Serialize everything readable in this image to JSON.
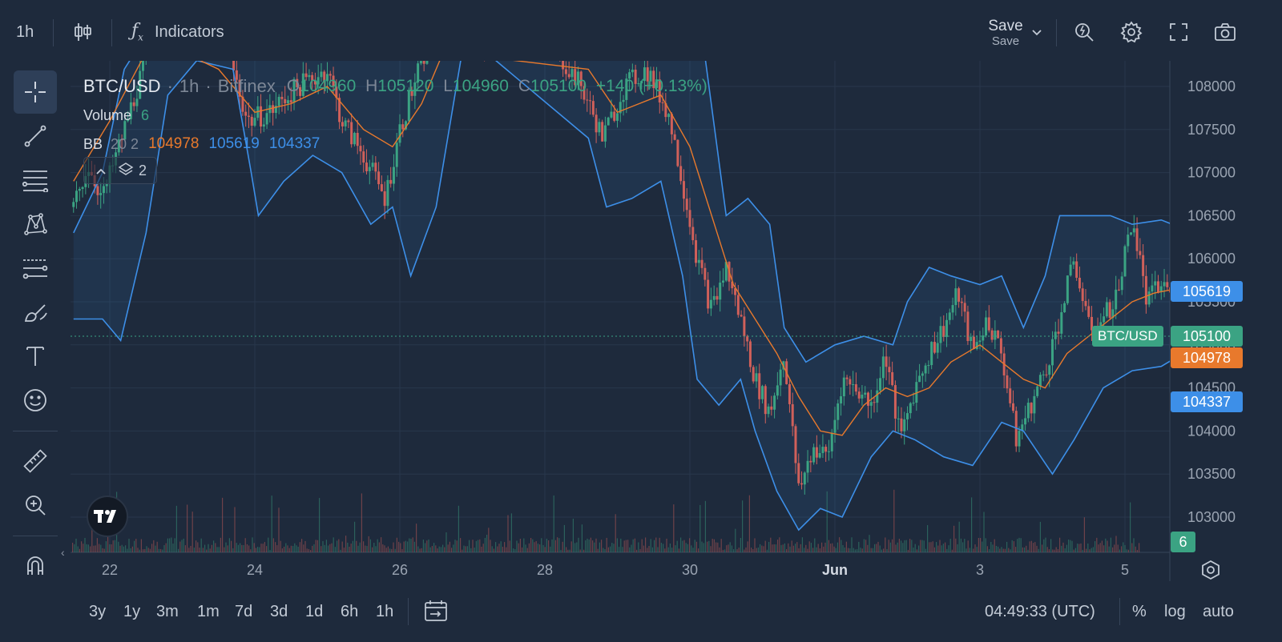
{
  "toolbar": {
    "interval": "1h",
    "indicators_label": "Indicators",
    "save_label": "Save",
    "save_sublabel": "Save"
  },
  "legend": {
    "symbol": "BTC/USD",
    "interval": "1h",
    "exchange": "Bitfinex",
    "o_key": "O",
    "o": "104960",
    "h_key": "H",
    "h": "105120",
    "l_key": "L",
    "l": "104960",
    "c_key": "C",
    "c": "105100",
    "change": "+140 (+0.13%)",
    "volume_label": "Volume",
    "volume_value": "6",
    "bb_label": "BB",
    "bb_params": "20 2",
    "bb_basis": "104978",
    "bb_upper": "105619",
    "bb_lower": "104337",
    "layers_count": "2"
  },
  "price_axis": {
    "ticks": [
      "108000",
      "107500",
      "107000",
      "106500",
      "106000",
      "105500",
      "105000",
      "104500",
      "104000",
      "103500",
      "103000"
    ],
    "labels": {
      "upper": "105619",
      "last": "105100",
      "basis": "104978",
      "lower": "104337",
      "symbol": "BTC/USD",
      "volume": "6"
    }
  },
  "time_axis": {
    "ticks": [
      "22",
      "24",
      "26",
      "28",
      "30",
      "Jun",
      "3",
      "5"
    ]
  },
  "bottom": {
    "ranges": [
      "3y",
      "1y",
      "3m",
      "1m",
      "7d",
      "3d",
      "1d",
      "6h",
      "1h"
    ],
    "clock": "04:49:33 (UTC)",
    "percent": "%",
    "log": "log",
    "auto": "auto"
  },
  "colors": {
    "background": "#1e2a3c",
    "up": "#3ba383",
    "down": "#d0605a",
    "bb_band": "#3d8fe8",
    "bb_basis": "#e8792c",
    "grid": "#28374b"
  },
  "chart_data": {
    "type": "candlestick",
    "ylim": [
      102700,
      108300
    ],
    "ticks": [
      108000,
      107500,
      107000,
      106500,
      106000,
      105500,
      105000,
      104500,
      104000,
      103500,
      103000
    ],
    "bb_upper": [
      {
        "d": 21.5,
        "v": 105800
      },
      {
        "d": 21.9,
        "v": 105300
      },
      {
        "d": 22.15,
        "v": 105050
      },
      {
        "d": 22.4,
        "v": 106000
      },
      {
        "d": 22.8,
        "v": 108600
      },
      {
        "d": 23.2,
        "v": 108500
      },
      {
        "d": 23.7,
        "v": 108600
      },
      {
        "d": 24.05,
        "v": 106500
      },
      {
        "d": 24.4,
        "v": 106800
      },
      {
        "d": 24.8,
        "v": 107200
      },
      {
        "d": 25.2,
        "v": 107000
      },
      {
        "d": 25.6,
        "v": 106400
      },
      {
        "d": 25.9,
        "v": 106500
      },
      {
        "d": 26.15,
        "v": 105800
      },
      {
        "d": 26.5,
        "v": 106500
      },
      {
        "d": 26.8,
        "v": 108500
      },
      {
        "d": 27.6,
        "v": 108600
      },
      {
        "d": 28.6,
        "v": 107600
      },
      {
        "d": 28.9,
        "v": 106800
      },
      {
        "d": 29.3,
        "v": 106900
      },
      {
        "d": 29.6,
        "v": 107200
      },
      {
        "d": 29.9,
        "v": 106100
      },
      {
        "d": 30.15,
        "v": 104700
      },
      {
        "d": 30.5,
        "v": 104600
      },
      {
        "d": 30.8,
        "v": 104200
      },
      {
        "d": 31.2,
        "v": 103400
      },
      {
        "d": 31.5,
        "v": 102850
      },
      {
        "d": 31.8,
        "v": 103050
      },
      {
        "d": 32.1,
        "v": 103000
      },
      {
        "d": 32.5,
        "v": 103700
      },
      {
        "d": 32.8,
        "v": 104500
      },
      {
        "d": 33.1,
        "v": 103900
      },
      {
        "d": 33.5,
        "v": 103700
      },
      {
        "d": 33.9,
        "v": 103900
      },
      {
        "d": 34.3,
        "v": 104200
      },
      {
        "d": 34.6,
        "v": 103800
      },
      {
        "d": 35.0,
        "v": 103500
      },
      {
        "d": 35.4,
        "v": 104300
      },
      {
        "d": 35.8,
        "v": 104700
      },
      {
        "d": 36.1,
        "v": 104800
      },
      {
        "d": 36.5,
        "v": 104400
      },
      {
        "d": 36.8,
        "v": 104400
      },
      {
        "d": 37.1,
        "v": 104500
      },
      {
        "d": 37.4,
        "v": 105100
      },
      {
        "d": 37.6,
        "v": 104700
      },
      {
        "d": 37.8,
        "v": 104400
      },
      {
        "d": 38.1,
        "v": 104300
      }
    ],
    "bb_lower_note": "lower band is the second half of the band envelope (script-joined)",
    "bb_upper_line": [
      {
        "d": 21.5,
        "v": 106300
      },
      {
        "d": 21.9,
        "v": 107000
      },
      {
        "d": 22.2,
        "v": 108200
      },
      {
        "d": 22.5,
        "v": 108600
      },
      {
        "d": 28.5,
        "v": 108600
      },
      {
        "d": 29.4,
        "v": 108500
      },
      {
        "d": 29.8,
        "v": 108600
      },
      {
        "d": 30.2,
        "v": 108400
      },
      {
        "d": 30.5,
        "v": 106500
      },
      {
        "d": 30.8,
        "v": 106700
      },
      {
        "d": 31.1,
        "v": 106400
      },
      {
        "d": 31.3,
        "v": 105200
      },
      {
        "d": 31.6,
        "v": 104800
      },
      {
        "d": 32.0,
        "v": 105000
      },
      {
        "d": 32.4,
        "v": 105100
      },
      {
        "d": 32.8,
        "v": 105000
      },
      {
        "d": 33.0,
        "v": 105500
      },
      {
        "d": 33.3,
        "v": 105900
      },
      {
        "d": 33.6,
        "v": 105800
      },
      {
        "d": 34.0,
        "v": 105700
      },
      {
        "d": 34.3,
        "v": 105800
      },
      {
        "d": 34.6,
        "v": 105200
      },
      {
        "d": 34.9,
        "v": 105800
      },
      {
        "d": 35.1,
        "v": 106500
      },
      {
        "d": 35.4,
        "v": 106500
      },
      {
        "d": 35.8,
        "v": 106500
      },
      {
        "d": 36.1,
        "v": 106400
      },
      {
        "d": 36.5,
        "v": 106450
      },
      {
        "d": 36.8,
        "v": 106350
      },
      {
        "d": 37.0,
        "v": 105900
      },
      {
        "d": 37.3,
        "v": 105900
      },
      {
        "d": 37.6,
        "v": 105700
      },
      {
        "d": 37.8,
        "v": 105600
      },
      {
        "d": 38.1,
        "v": 105619
      }
    ],
    "bb_lower_line": [
      {
        "d": 21.5,
        "v": 105300
      },
      {
        "d": 21.9,
        "v": 105300
      },
      {
        "d": 22.15,
        "v": 105050
      },
      {
        "d": 22.5,
        "v": 106300
      },
      {
        "d": 22.8,
        "v": 107900
      },
      {
        "d": 23.2,
        "v": 108300
      },
      {
        "d": 23.7,
        "v": 108200
      },
      {
        "d": 23.95,
        "v": 107000
      },
      {
        "d": 24.05,
        "v": 106500
      },
      {
        "d": 24.4,
        "v": 106900
      },
      {
        "d": 24.8,
        "v": 107200
      },
      {
        "d": 25.2,
        "v": 107000
      },
      {
        "d": 25.6,
        "v": 106400
      },
      {
        "d": 25.9,
        "v": 106600
      },
      {
        "d": 26.15,
        "v": 105800
      },
      {
        "d": 26.5,
        "v": 106600
      },
      {
        "d": 26.9,
        "v": 108600
      },
      {
        "d": 28.6,
        "v": 107400
      },
      {
        "d": 28.85,
        "v": 106600
      },
      {
        "d": 29.2,
        "v": 106700
      },
      {
        "d": 29.6,
        "v": 106900
      },
      {
        "d": 29.9,
        "v": 105800
      },
      {
        "d": 30.1,
        "v": 104600
      },
      {
        "d": 30.4,
        "v": 104300
      },
      {
        "d": 30.7,
        "v": 104600
      },
      {
        "d": 30.9,
        "v": 104000
      },
      {
        "d": 31.2,
        "v": 103300
      },
      {
        "d": 31.5,
        "v": 102850
      },
      {
        "d": 31.8,
        "v": 103100
      },
      {
        "d": 32.1,
        "v": 103000
      },
      {
        "d": 32.5,
        "v": 103700
      },
      {
        "d": 32.8,
        "v": 104000
      },
      {
        "d": 33.1,
        "v": 103900
      },
      {
        "d": 33.5,
        "v": 103700
      },
      {
        "d": 33.9,
        "v": 103600
      },
      {
        "d": 34.3,
        "v": 104100
      },
      {
        "d": 34.6,
        "v": 104000
      },
      {
        "d": 35.0,
        "v": 103500
      },
      {
        "d": 35.3,
        "v": 103900
      },
      {
        "d": 35.7,
        "v": 104500
      },
      {
        "d": 36.1,
        "v": 104700
      },
      {
        "d": 36.5,
        "v": 104750
      },
      {
        "d": 36.8,
        "v": 104900
      },
      {
        "d": 37.0,
        "v": 105100
      },
      {
        "d": 37.3,
        "v": 104700
      },
      {
        "d": 37.6,
        "v": 104400
      },
      {
        "d": 38.1,
        "v": 104337
      }
    ],
    "bb_basis_line": [
      {
        "d": 21.5,
        "v": 106900
      },
      {
        "d": 22.0,
        "v": 107600
      },
      {
        "d": 22.5,
        "v": 108400
      },
      {
        "d": 23.0,
        "v": 108400
      },
      {
        "d": 23.5,
        "v": 108200
      },
      {
        "d": 24.0,
        "v": 107700
      },
      {
        "d": 24.5,
        "v": 107800
      },
      {
        "d": 25.0,
        "v": 108000
      },
      {
        "d": 25.5,
        "v": 107500
      },
      {
        "d": 25.9,
        "v": 107300
      },
      {
        "d": 26.3,
        "v": 107800
      },
      {
        "d": 26.6,
        "v": 108400
      },
      {
        "d": 28.6,
        "v": 108200
      },
      {
        "d": 29.0,
        "v": 107700
      },
      {
        "d": 29.3,
        "v": 107800
      },
      {
        "d": 29.6,
        "v": 107900
      },
      {
        "d": 30.0,
        "v": 107300
      },
      {
        "d": 30.3,
        "v": 106500
      },
      {
        "d": 30.6,
        "v": 105700
      },
      {
        "d": 30.9,
        "v": 105300
      },
      {
        "d": 31.2,
        "v": 104900
      },
      {
        "d": 31.5,
        "v": 104400
      },
      {
        "d": 31.8,
        "v": 104000
      },
      {
        "d": 32.1,
        "v": 103950
      },
      {
        "d": 32.4,
        "v": 104300
      },
      {
        "d": 32.7,
        "v": 104500
      },
      {
        "d": 33.0,
        "v": 104400
      },
      {
        "d": 33.3,
        "v": 104500
      },
      {
        "d": 33.6,
        "v": 104800
      },
      {
        "d": 34.0,
        "v": 105000
      },
      {
        "d": 34.3,
        "v": 104800
      },
      {
        "d": 34.6,
        "v": 104600
      },
      {
        "d": 34.9,
        "v": 104500
      },
      {
        "d": 35.2,
        "v": 104900
      },
      {
        "d": 35.5,
        "v": 105100
      },
      {
        "d": 35.8,
        "v": 105300
      },
      {
        "d": 36.1,
        "v": 105500
      },
      {
        "d": 36.4,
        "v": 105600
      },
      {
        "d": 36.7,
        "v": 105650
      },
      {
        "d": 37.0,
        "v": 105600
      },
      {
        "d": 37.3,
        "v": 105300
      },
      {
        "d": 37.6,
        "v": 105100
      },
      {
        "d": 38.1,
        "v": 104978
      }
    ],
    "close_path": [
      {
        "d": 21.5,
        "v": 106600
      },
      {
        "d": 21.7,
        "v": 107100
      },
      {
        "d": 21.9,
        "v": 106700
      },
      {
        "d": 22.2,
        "v": 107500
      },
      {
        "d": 22.6,
        "v": 108600
      },
      {
        "d": 23.0,
        "v": 108700
      },
      {
        "d": 23.6,
        "v": 108500
      },
      {
        "d": 23.9,
        "v": 107600
      },
      {
        "d": 24.2,
        "v": 107700
      },
      {
        "d": 24.6,
        "v": 108000
      },
      {
        "d": 25.0,
        "v": 108200
      },
      {
        "d": 25.2,
        "v": 107600
      },
      {
        "d": 25.5,
        "v": 107200
      },
      {
        "d": 25.8,
        "v": 106700
      },
      {
        "d": 26.0,
        "v": 107500
      },
      {
        "d": 26.3,
        "v": 108300
      },
      {
        "d": 26.6,
        "v": 108800
      },
      {
        "d": 27.0,
        "v": 108500
      },
      {
        "d": 28.0,
        "v": 108600
      },
      {
        "d": 28.5,
        "v": 108000
      },
      {
        "d": 28.8,
        "v": 107400
      },
      {
        "d": 29.1,
        "v": 108000
      },
      {
        "d": 29.4,
        "v": 108200
      },
      {
        "d": 29.7,
        "v": 107700
      },
      {
        "d": 29.9,
        "v": 106900
      },
      {
        "d": 30.1,
        "v": 106000
      },
      {
        "d": 30.3,
        "v": 105400
      },
      {
        "d": 30.5,
        "v": 105900
      },
      {
        "d": 30.7,
        "v": 105300
      },
      {
        "d": 30.9,
        "v": 104600
      },
      {
        "d": 31.1,
        "v": 104200
      },
      {
        "d": 31.3,
        "v": 104900
      },
      {
        "d": 31.5,
        "v": 103300
      },
      {
        "d": 31.7,
        "v": 103800
      },
      {
        "d": 31.9,
        "v": 103700
      },
      {
        "d": 32.1,
        "v": 104600
      },
      {
        "d": 32.3,
        "v": 104500
      },
      {
        "d": 32.5,
        "v": 104300
      },
      {
        "d": 32.7,
        "v": 104900
      },
      {
        "d": 32.9,
        "v": 103900
      },
      {
        "d": 33.1,
        "v": 104500
      },
      {
        "d": 33.3,
        "v": 104900
      },
      {
        "d": 33.5,
        "v": 105200
      },
      {
        "d": 33.7,
        "v": 105600
      },
      {
        "d": 33.9,
        "v": 104900
      },
      {
        "d": 34.1,
        "v": 105300
      },
      {
        "d": 34.3,
        "v": 104900
      },
      {
        "d": 34.5,
        "v": 103900
      },
      {
        "d": 34.7,
        "v": 104300
      },
      {
        "d": 34.9,
        "v": 104700
      },
      {
        "d": 35.1,
        "v": 105300
      },
      {
        "d": 35.3,
        "v": 106000
      },
      {
        "d": 35.5,
        "v": 105200
      },
      {
        "d": 35.7,
        "v": 105300
      },
      {
        "d": 35.9,
        "v": 105600
      },
      {
        "d": 36.1,
        "v": 106500
      },
      {
        "d": 36.3,
        "v": 105500
      },
      {
        "d": 36.5,
        "v": 105700
      },
      {
        "d": 36.7,
        "v": 105600
      },
      {
        "d": 36.9,
        "v": 105300
      },
      {
        "d": 37.1,
        "v": 105600
      },
      {
        "d": 37.3,
        "v": 104800
      },
      {
        "d": 37.5,
        "v": 105000
      },
      {
        "d": 37.7,
        "v": 104700
      },
      {
        "d": 37.9,
        "v": 104900
      },
      {
        "d": 38.1,
        "v": 105100
      }
    ],
    "last_price": 105100
  }
}
